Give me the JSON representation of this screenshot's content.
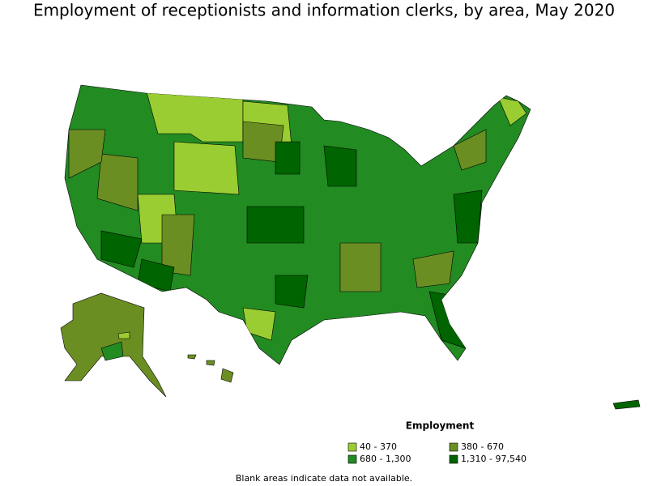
{
  "title": "Employment of receptionists and information clerks, by area, May 2020",
  "legend": {
    "title": "Employment",
    "items": [
      {
        "label": "40 - 370",
        "color": "#9acd32"
      },
      {
        "label": "380 - 670",
        "color": "#6b8e23"
      },
      {
        "label": "680 - 1,300",
        "color": "#228b22"
      },
      {
        "label": "1,310 - 97,540",
        "color": "#006400"
      }
    ]
  },
  "note": "Blank areas indicate data not available."
}
